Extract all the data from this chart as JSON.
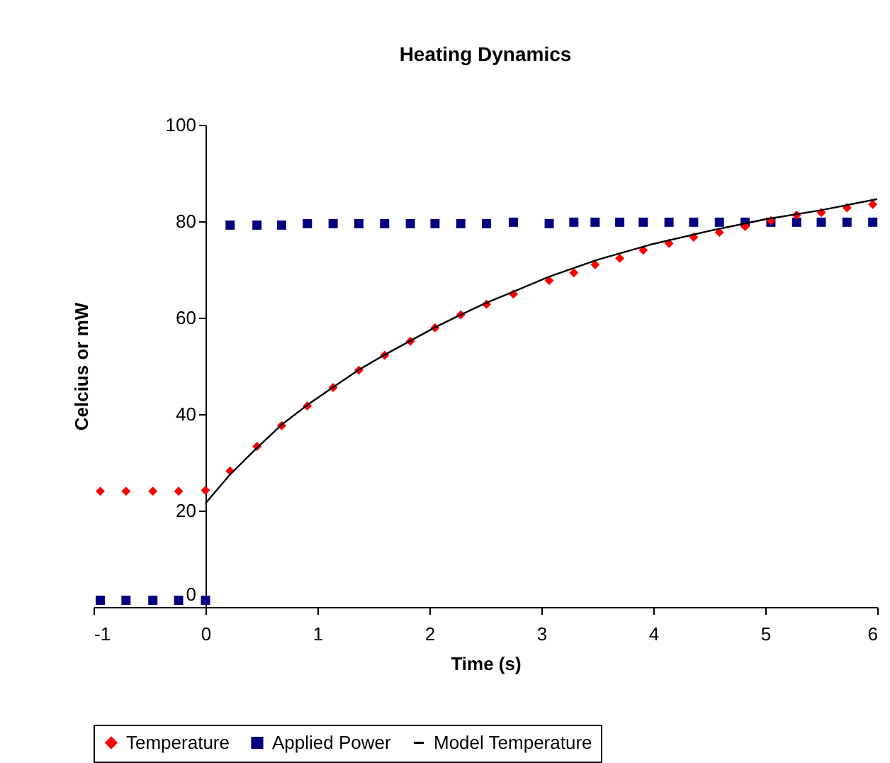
{
  "chart_data": {
    "type": "scatter",
    "title": "Heating Dynamics",
    "xlabel": "Time (s)",
    "ylabel": "Celcius or mW",
    "xlim": [
      -1,
      6
    ],
    "xticks": [
      -1,
      0,
      1,
      2,
      3,
      4,
      5,
      6
    ],
    "ylim": [
      0,
      100
    ],
    "yticks": [
      0,
      20,
      40,
      60,
      80,
      100
    ],
    "grid": false,
    "legend": "bottom",
    "series": [
      {
        "name": "Temperature",
        "type": "scatter",
        "marker": "diamond",
        "color": "#ff0000",
        "x": [
          -0.94,
          -0.71,
          -0.47,
          -0.24,
          0,
          0.22,
          0.46,
          0.68,
          0.91,
          1.14,
          1.37,
          1.6,
          1.83,
          2.05,
          2.28,
          2.51,
          2.75,
          3.07,
          3.29,
          3.48,
          3.7,
          3.91,
          4.14,
          4.36,
          4.59,
          4.82,
          5.05,
          5.28,
          5.5,
          5.73,
          5.96
        ],
        "values": [
          24,
          24,
          24,
          24,
          24.2,
          28.2,
          33.3,
          37.6,
          41.7,
          45.5,
          49.1,
          52.2,
          55.1,
          57.9,
          60.6,
          62.8,
          64.9,
          67.7,
          69.3,
          71,
          72.3,
          74,
          75.4,
          76.7,
          77.7,
          78.9,
          80.1,
          81.3,
          81.8,
          82.8,
          83.5
        ]
      },
      {
        "name": "Applied Power",
        "type": "scatter",
        "marker": "square",
        "color": "#000080",
        "x": [
          -0.94,
          -0.71,
          -0.47,
          -0.24,
          0,
          0.22,
          0.46,
          0.68,
          0.91,
          1.14,
          1.37,
          1.6,
          1.83,
          2.05,
          2.28,
          2.51,
          2.75,
          3.07,
          3.29,
          3.48,
          3.7,
          3.91,
          4.14,
          4.36,
          4.59,
          4.82,
          5.05,
          5.28,
          5.5,
          5.73,
          5.96
        ],
        "values": [
          1.4,
          1.4,
          1.4,
          1.4,
          1.4,
          79.2,
          79.2,
          79.2,
          79.5,
          79.5,
          79.5,
          79.5,
          79.5,
          79.5,
          79.5,
          79.5,
          79.8,
          79.5,
          79.8,
          79.8,
          79.8,
          79.8,
          79.8,
          79.8,
          79.8,
          79.8,
          79.8,
          79.8,
          79.8,
          79.8,
          79.8
        ]
      },
      {
        "name": "Model Temperature",
        "type": "line",
        "marker": "none",
        "line_style": "solid",
        "color": "#000000",
        "x": [
          0,
          0.22,
          0.46,
          0.68,
          0.91,
          1.14,
          1.37,
          1.6,
          1.83,
          2.05,
          2.28,
          2.51,
          2.75,
          3.07,
          3.5,
          4,
          4.5,
          5,
          5.5,
          6
        ],
        "values": [
          21.5,
          27.5,
          33,
          37.8,
          41.9,
          45.6,
          49.2,
          52.3,
          55.2,
          58,
          60.6,
          63.1,
          65.4,
          68.5,
          72,
          75.3,
          78,
          80.4,
          82.3,
          84.6
        ]
      }
    ]
  }
}
